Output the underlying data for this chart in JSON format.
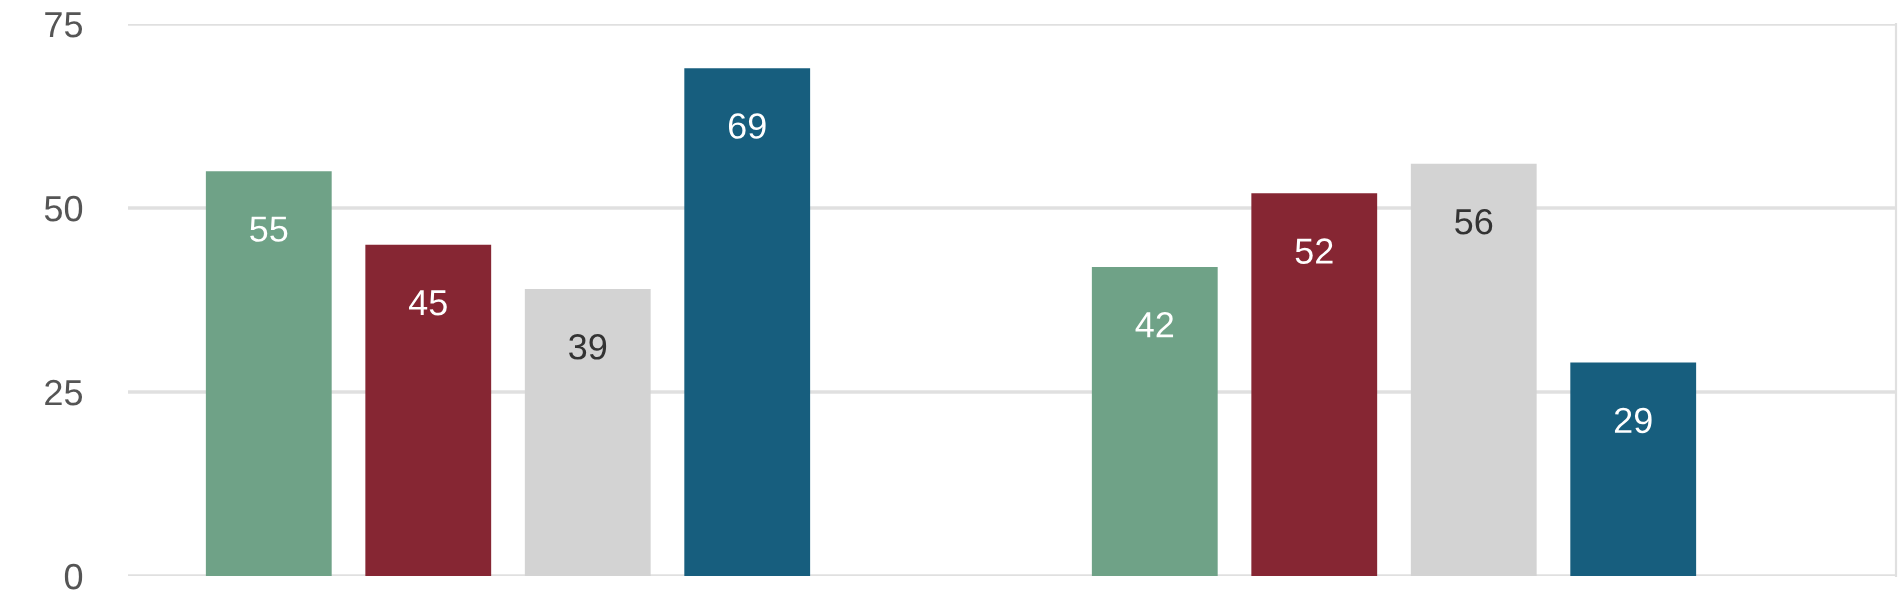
{
  "chart_data": {
    "type": "bar",
    "categories": [
      null,
      null
    ],
    "series": [
      {
        "color": "#6fa287",
        "values": [
          55,
          42
        ]
      },
      {
        "color": "#862633",
        "values": [
          45,
          52
        ]
      },
      {
        "color": "#d3d3d3",
        "values": [
          39,
          56
        ]
      },
      {
        "color": "#175e7e",
        "values": [
          69,
          29
        ]
      }
    ],
    "ylim": [
      0,
      75
    ],
    "yticks": [
      0,
      25,
      50,
      75
    ],
    "grid": "y",
    "data_labels": true,
    "legend": false
  }
}
